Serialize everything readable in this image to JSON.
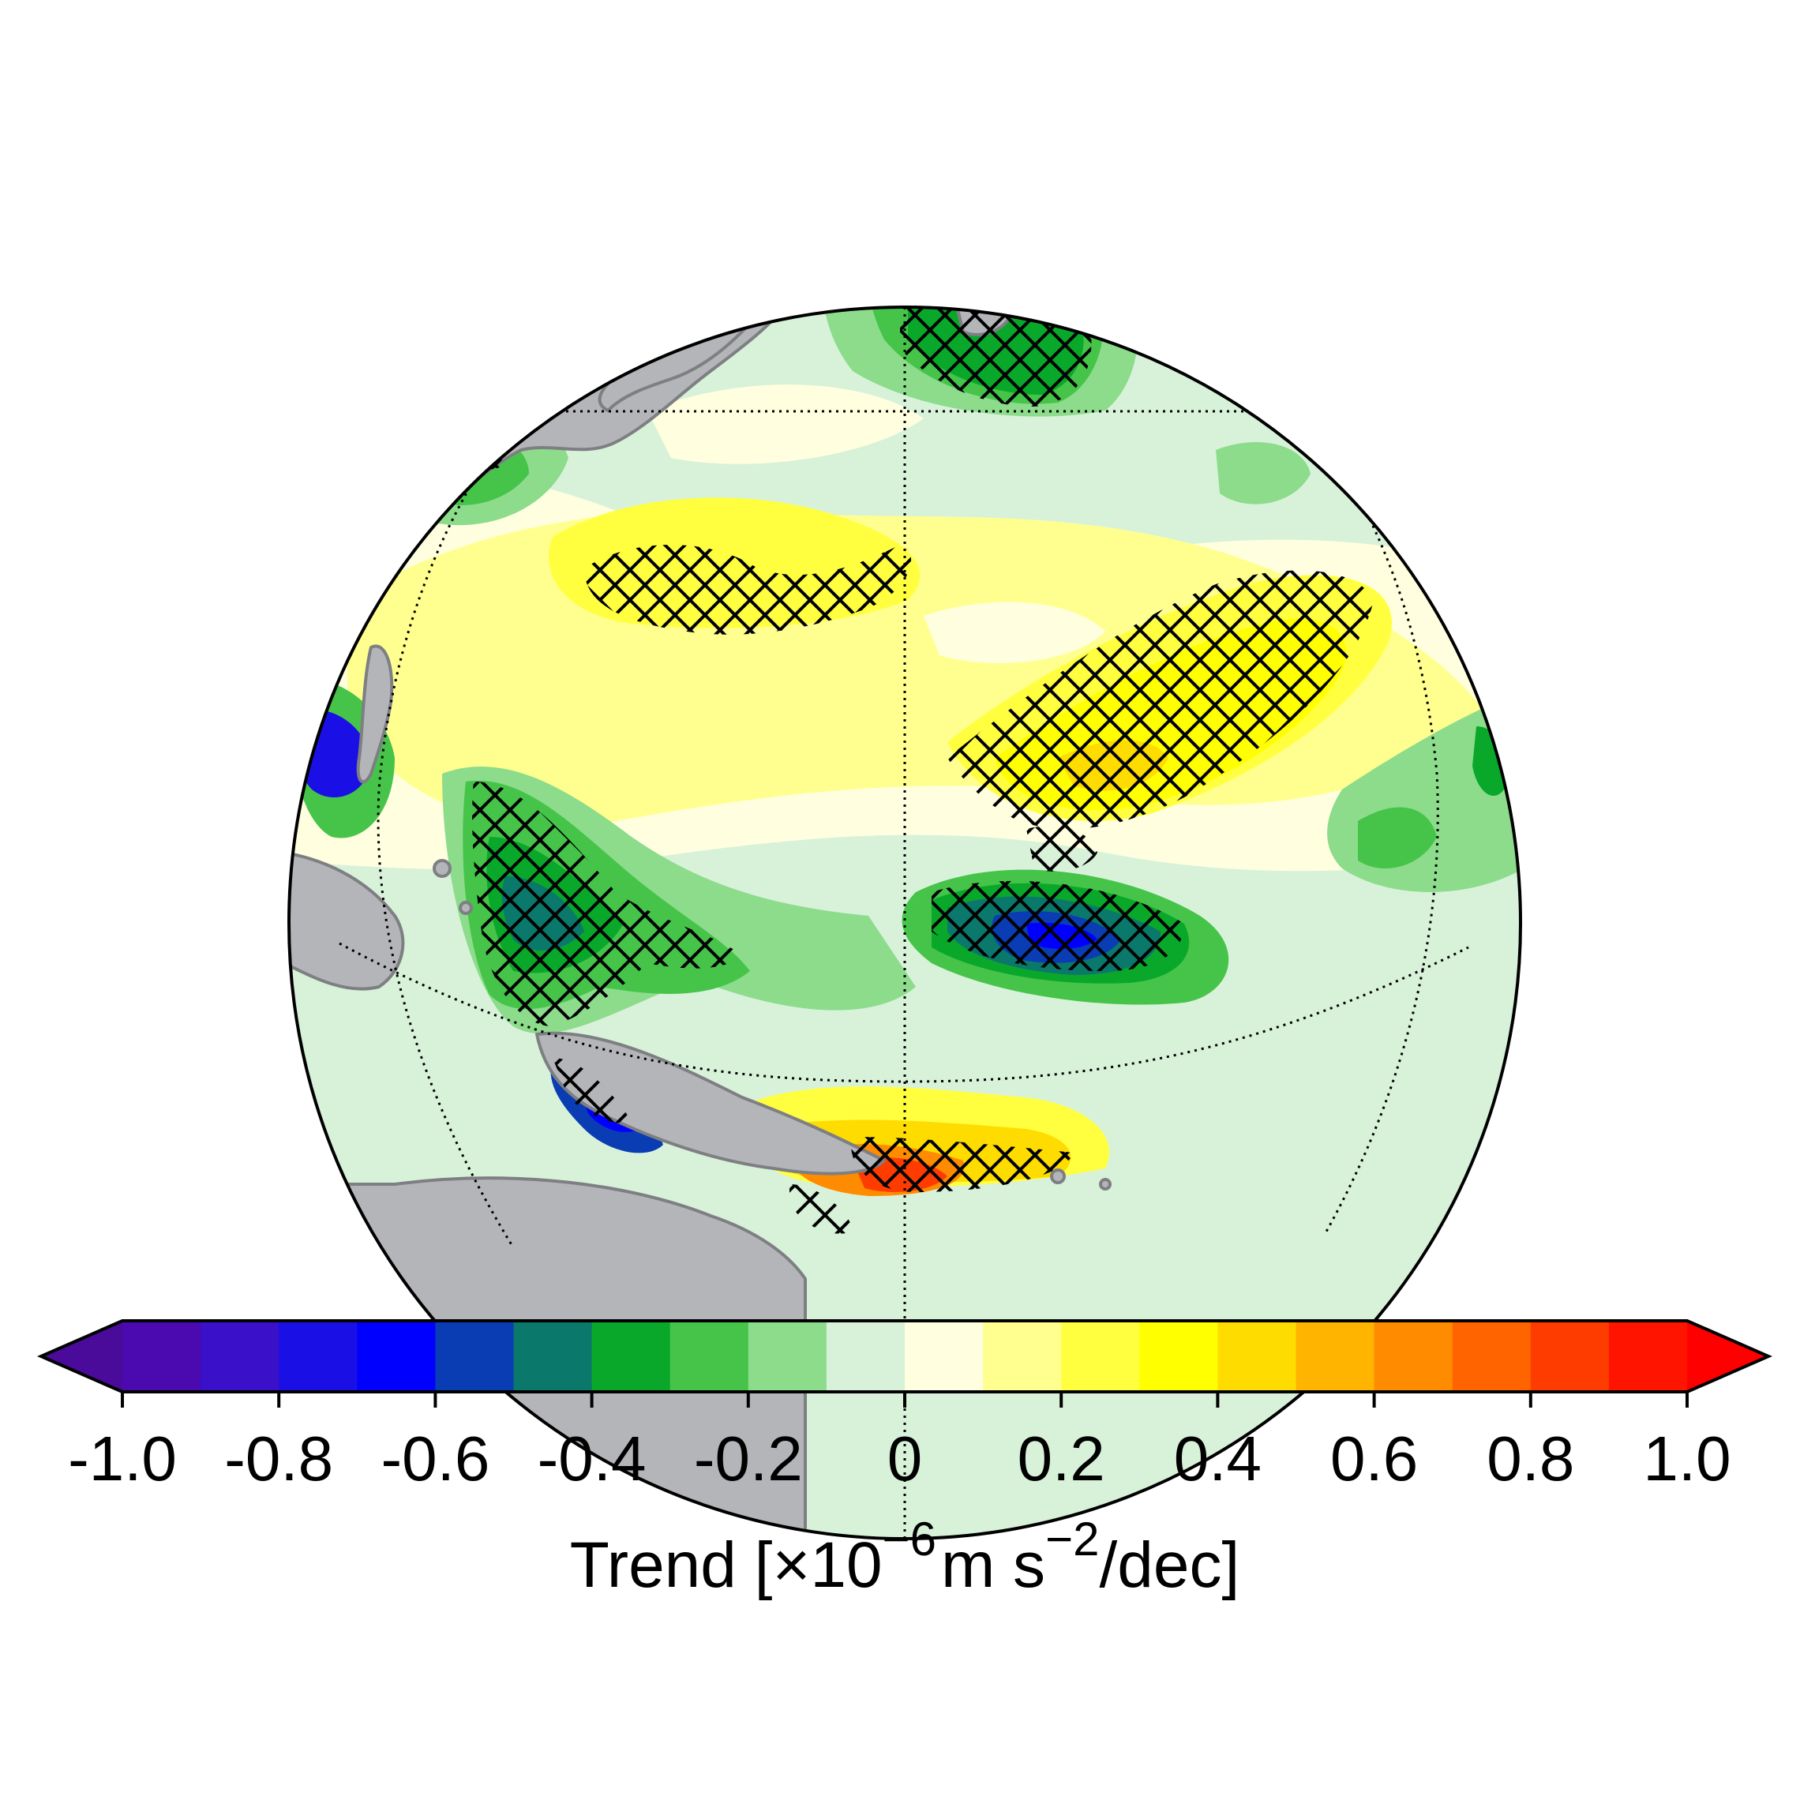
{
  "colorbar": {
    "colors": [
      "#4a0a9a",
      "#4a0ab0",
      "#3a10c8",
      "#1a10e6",
      "#0000ff",
      "#0a3cb4",
      "#0a786a",
      "#0aa82a",
      "#46c44a",
      "#8cdc8c",
      "#d8f2da",
      "#ffffe0",
      "#ffff90",
      "#ffff40",
      "#ffff00",
      "#ffdc00",
      "#ffb400",
      "#ff8c00",
      "#ff6400",
      "#ff3c00",
      "#ff1400",
      "#ff0000"
    ],
    "tick_values": [
      -1.0,
      -0.8,
      -0.6,
      -0.4,
      -0.2,
      0,
      0.2,
      0.4,
      0.6,
      0.8,
      1.0
    ],
    "tick_labels": [
      "-1.0",
      "-0.8",
      "-0.6",
      "-0.4",
      "-0.2",
      "0",
      "0.2",
      "0.4",
      "0.6",
      "0.8",
      "1.0"
    ],
    "label": {
      "prefix": "Trend [×10",
      "exp1": "−6",
      "mid": "m s",
      "exp2": "−2",
      "suffix": "/dec]"
    }
  },
  "map": {
    "land_color": "#b4b5b8",
    "coast_color": "#7e7f82",
    "ocean_base_color": "#d8f2da",
    "graticule": "dotted",
    "hatching": "cross-hatch marks significant trends"
  }
}
